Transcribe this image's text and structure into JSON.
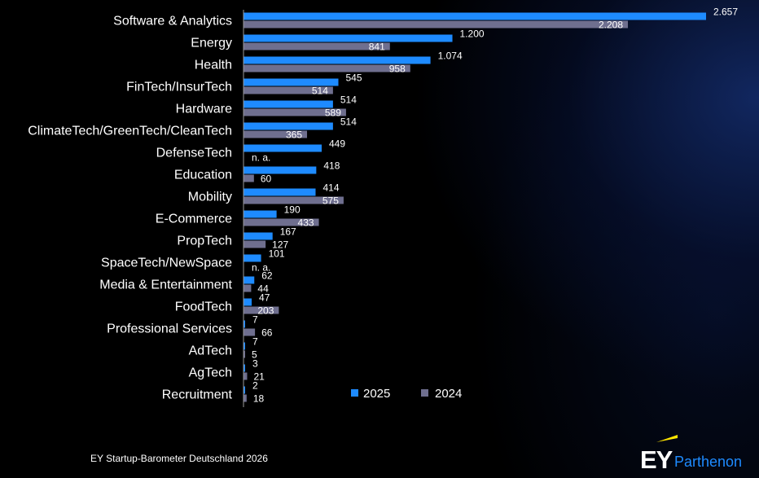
{
  "colors": {
    "series_2025": "#1e8bff",
    "series_2024": "#6f6f8f",
    "background": "#000000",
    "text": "#ffffff",
    "brand_yellow": "#ffe600",
    "brand_blue": "#1e8bff"
  },
  "chart_data": {
    "type": "bar",
    "orientation": "horizontal",
    "title": "",
    "xlabel": "",
    "ylabel": "",
    "xlim": [
      0,
      2700
    ],
    "categories": [
      "Software & Analytics",
      "Energy",
      "Health",
      "FinTech/InsurTech",
      "Hardware",
      "ClimateTech/GreenTech/CleanTech",
      "DefenseTech",
      "Education",
      "Mobility",
      "E-Commerce",
      "PropTech",
      "SpaceTech/NewSpace",
      "Media & Entertainment",
      "FoodTech",
      "Professional Services",
      "AdTech",
      "AgTech",
      "Recruitment"
    ],
    "series": [
      {
        "name": "2025",
        "values": [
          2657,
          1200,
          1074,
          545,
          514,
          514,
          449,
          418,
          414,
          190,
          167,
          101,
          62,
          47,
          7,
          7,
          3,
          2
        ],
        "labels": [
          "2.657",
          "1.200",
          "1.074",
          "545",
          "514",
          "514",
          "449",
          "418",
          "414",
          "190",
          "167",
          "101",
          "62",
          "47",
          "7",
          "7",
          "3",
          "2"
        ]
      },
      {
        "name": "2024",
        "values": [
          2208,
          841,
          958,
          514,
          589,
          365,
          null,
          60,
          575,
          433,
          127,
          null,
          44,
          203,
          66,
          5,
          21,
          18
        ],
        "labels": [
          "2.208",
          "841",
          "958",
          "514",
          "589",
          "365",
          "n. a.",
          "60",
          "575",
          "433",
          "127",
          "n. a.",
          "44",
          "203",
          "66",
          "5",
          "21",
          "18"
        ]
      }
    ],
    "legend": {
      "position": "bottom-center",
      "entries": [
        "2025",
        "2024"
      ]
    },
    "grid": false
  },
  "footer": {
    "source": "EY Startup-Barometer Deutschland 2026"
  },
  "logo": {
    "brand": "EY",
    "name": "Parthenon"
  }
}
